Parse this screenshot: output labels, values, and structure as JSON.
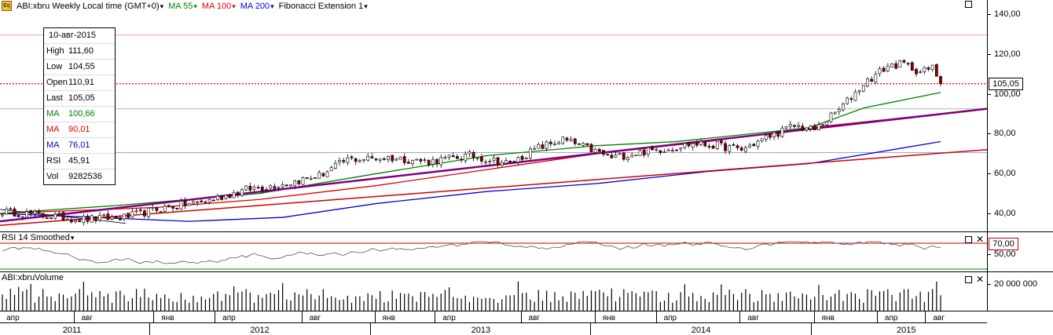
{
  "header": {
    "symbol_label": "ABI:xbru Weekly Local time (GMT+0)",
    "ma55_label": "MA 55",
    "ma100_label": "MA 100",
    "ma200_label": "MA 200",
    "fib_label": "Fibonacci Extension 1"
  },
  "colors": {
    "ma55": "#008000",
    "ma100": "#e00000",
    "ma200": "#0000e0",
    "trendline": "#800080",
    "up_candle": "#ffffff",
    "down_candle": "#8b0000",
    "last_line": "#cc0000"
  },
  "ohlc_box": [
    {
      "key": "",
      "value": "10-авг-2015"
    },
    {
      "key": "High",
      "value": "111,60"
    },
    {
      "key": "Low",
      "value": "104,55"
    },
    {
      "key": "Open",
      "value": "110,91"
    },
    {
      "key": "Last",
      "value": "105,05"
    },
    {
      "key": "MA",
      "value": "100,66",
      "color": "#008000"
    },
    {
      "key": "MA",
      "value": "90,01",
      "color": "#e00000"
    },
    {
      "key": "MA",
      "value": "76,01",
      "color": "#0000e0"
    },
    {
      "key": "RSI",
      "value": "45,91"
    },
    {
      "key": "Vol",
      "value": "9282536"
    }
  ],
  "price_axis": {
    "ticks": [
      "140,00",
      "120,00",
      "100,00",
      "80,00",
      "60,00",
      "40,00"
    ],
    "tick_values": [
      140,
      120,
      100,
      80,
      60,
      40
    ],
    "last_value": "105,05",
    "last_num": 105.05,
    "fib_levels": [
      129.5,
      92.5,
      70.5
    ]
  },
  "rsi_pane": {
    "label": "RSI 14 Smoothed",
    "upper_value": "70,00",
    "lower_tick": "50,00",
    "upper_num": 70,
    "lower_num": 30
  },
  "volume_pane": {
    "label": "ABI:xbruVolume",
    "tick": "20 000 000"
  },
  "time_axis": {
    "months": [
      {
        "label": "апр",
        "pos": 0.016
      },
      {
        "label": "авг",
        "pos": 0.092
      },
      {
        "label": "янв",
        "pos": 0.173
      },
      {
        "label": "апр",
        "pos": 0.235
      },
      {
        "label": "авг",
        "pos": 0.323
      },
      {
        "label": "янв",
        "pos": 0.397
      },
      {
        "label": "апр",
        "pos": 0.458
      },
      {
        "label": "авг",
        "pos": 0.545
      },
      {
        "label": "янв",
        "pos": 0.62
      },
      {
        "label": "апр",
        "pos": 0.682
      },
      {
        "label": "авг",
        "pos": 0.767
      },
      {
        "label": "янв",
        "pos": 0.842
      },
      {
        "label": "апр",
        "pos": 0.906
      },
      {
        "label": "авг",
        "pos": 0.955
      }
    ],
    "years": [
      {
        "label": "2011",
        "pos": 0.073
      },
      {
        "label": "2012",
        "pos": 0.263
      },
      {
        "label": "2013",
        "pos": 0.487
      },
      {
        "label": "2014",
        "pos": 0.71
      },
      {
        "label": "2015",
        "pos": 0.918
      }
    ]
  }
}
